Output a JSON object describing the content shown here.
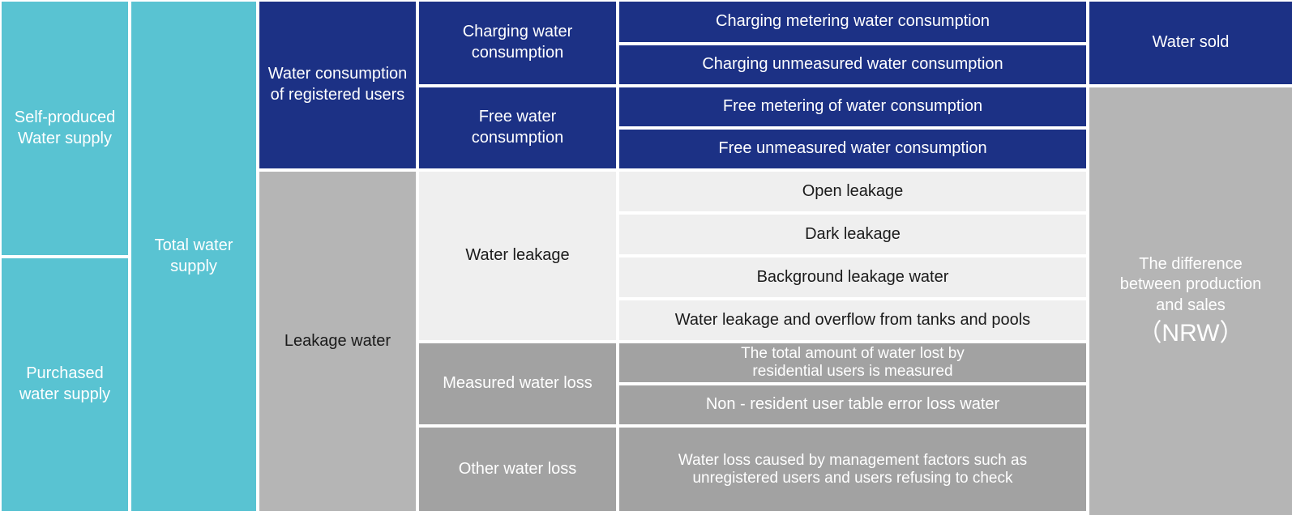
{
  "palette": {
    "teal": "#59c3d2",
    "navy": "#1c3185",
    "light_gray": "#efefef",
    "mid_gray": "#a2a2a2",
    "soft_gray": "#b5b5b5",
    "white_text": "#ffffff",
    "dark_text": "#1b1b1b"
  },
  "supply": {
    "self_produced": "Self-produced\nWater supply",
    "purchased": "Purchased\nwater supply",
    "total": "Total water\nsupply"
  },
  "consumption": {
    "registered": "Water consumption\nof registered users",
    "leakage": "Leakage water",
    "charging": "Charging water\nconsumption",
    "free": "Free water\nconsumption",
    "water_leakage": "Water leakage",
    "measured_loss": "Measured water loss",
    "other_loss": "Other water loss"
  },
  "detail_rows": [
    "Charging metering water consumption",
    "Charging unmeasured water consumption",
    "Free metering of water consumption",
    "Free unmeasured water consumption",
    "Open leakage",
    "Dark leakage",
    "Background leakage water",
    "Water leakage and overflow from tanks and pools",
    "The total amount of water lost by\nresidential users is measured",
    "Non - resident user table error loss water",
    "Water loss caused by management factors such as\nunregistered users and users refusing to check"
  ],
  "balance": {
    "water_sold": "Water sold",
    "nrw_text": "The difference\nbetween production\nand sales",
    "nrw_label": "（NRW）"
  }
}
